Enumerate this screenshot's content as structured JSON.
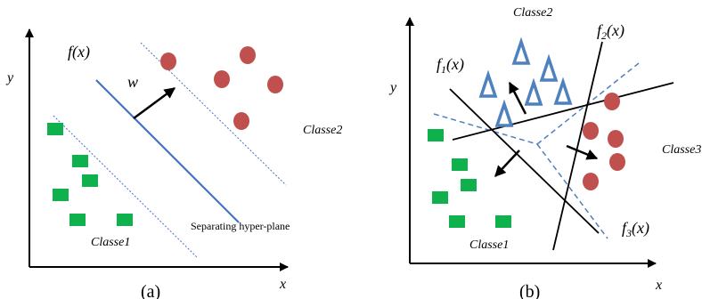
{
  "colors": {
    "green": "#0eb14b",
    "red": "#c0504d",
    "blue": "#4f81bd",
    "hyperplane": "#4472c4",
    "black": "#000000"
  },
  "panel_a": {
    "y_axis_label": "y",
    "x_axis_label": "x",
    "function_label": "f(x)",
    "weight_label": "w",
    "class1_label": "Classe1",
    "class2_label": "Classe2",
    "hyperplane_label": "Separating hyper-plane",
    "caption": "(a)"
  },
  "panel_b": {
    "y_axis_label": "y",
    "x_axis_label": "x",
    "f1_base": "f",
    "f1_sub": "1",
    "f1_arg": "(x)",
    "f2_base": "f",
    "f2_sub": "2",
    "f2_arg": "(x)",
    "f3_base": "f",
    "f3_sub": "3",
    "f3_arg": "(x)",
    "class1_label": "Classe1",
    "class2_label": "Classe2",
    "class3_label": "Classe3",
    "caption": "(b)"
  }
}
